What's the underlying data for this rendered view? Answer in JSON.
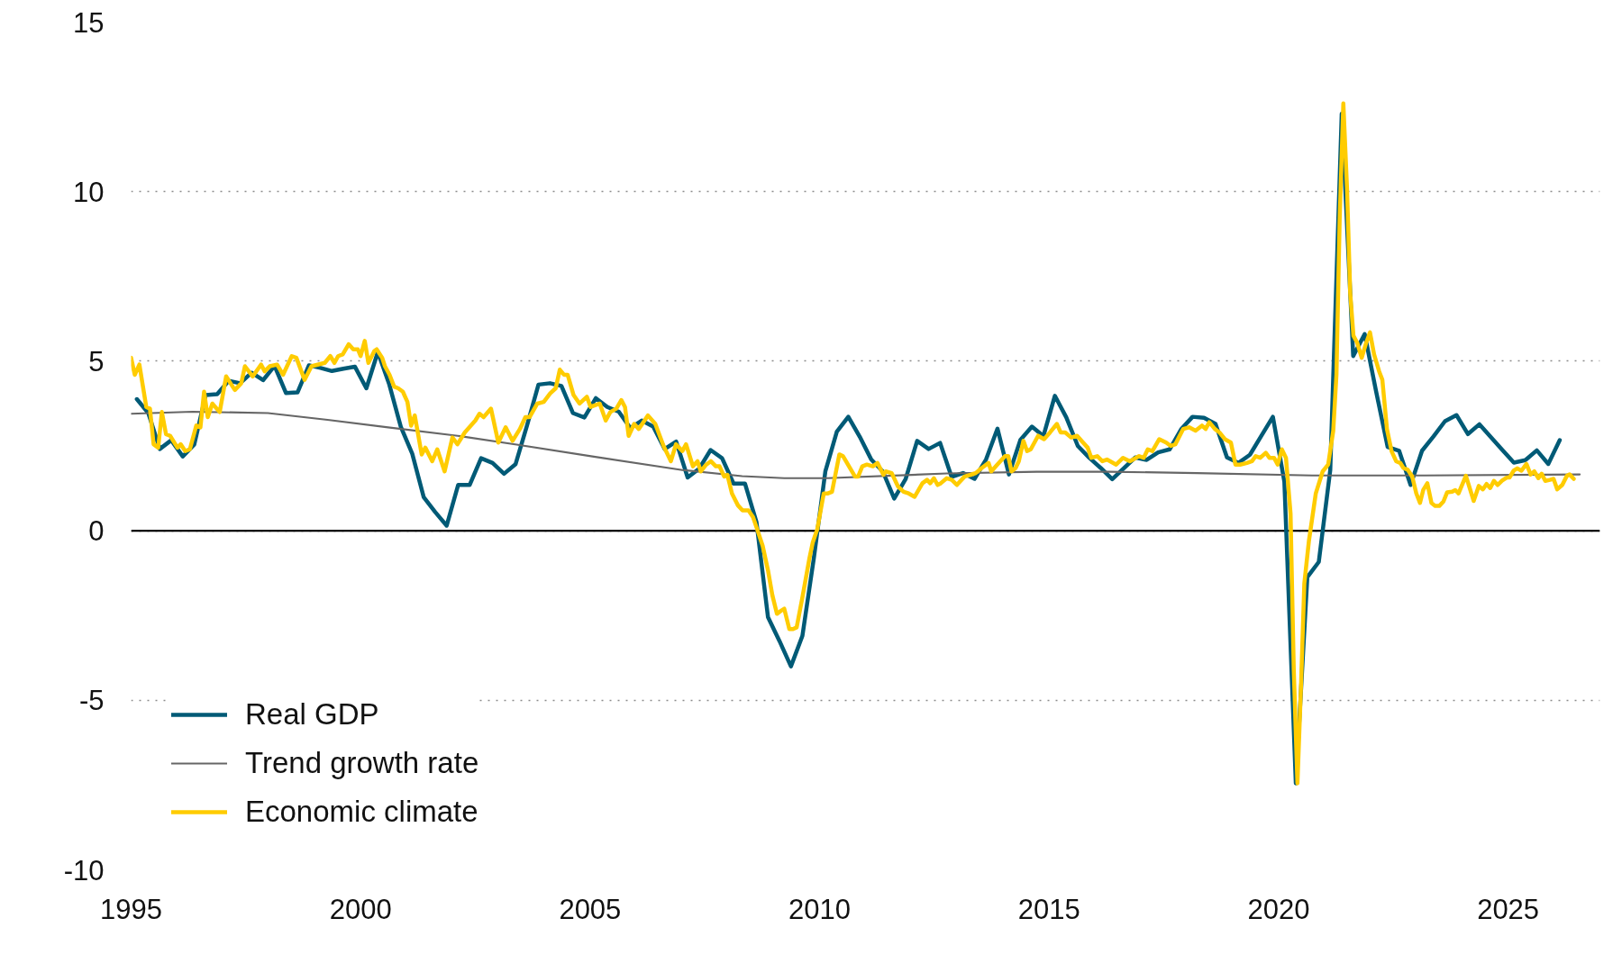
{
  "chart_data": {
    "type": "line",
    "xlim": [
      1995,
      2027
    ],
    "xticks": [
      1995,
      2000,
      2005,
      2010,
      2015,
      2020,
      2025
    ],
    "ylim": [
      -10,
      15
    ],
    "yticks": [
      -10,
      -5,
      0,
      5,
      10,
      15
    ],
    "grid": "y",
    "legend": "bottom left",
    "ref_lines": [
      {
        "axis": "y",
        "value": 0,
        "color": "#000000"
      }
    ],
    "series": [
      {
        "name": "Real GDP",
        "color": "#005a76",
        "x": [
          1995.125,
          1995.375,
          1995.625,
          1995.875,
          1996.125,
          1996.375,
          1996.625,
          1996.875,
          1997.125,
          1997.375,
          1997.625,
          1997.875,
          1998.125,
          1998.375,
          1998.625,
          1998.875,
          1999.125,
          1999.375,
          1999.625,
          1999.875,
          2000.125,
          2000.375,
          2000.625,
          2000.875,
          2001.125,
          2001.375,
          2001.625,
          2001.875,
          2002.125,
          2002.375,
          2002.625,
          2002.875,
          2003.125,
          2003.375,
          2003.625,
          2003.875,
          2004.125,
          2004.375,
          2004.625,
          2004.875,
          2005.125,
          2005.375,
          2005.625,
          2005.875,
          2006.125,
          2006.375,
          2006.625,
          2006.875,
          2007.125,
          2007.375,
          2007.625,
          2007.875,
          2008.125,
          2008.375,
          2008.625,
          2008.875,
          2009.125,
          2009.375,
          2009.625,
          2009.875,
          2010.125,
          2010.375,
          2010.625,
          2010.875,
          2011.125,
          2011.375,
          2011.625,
          2011.875,
          2012.125,
          2012.375,
          2012.625,
          2012.875,
          2013.125,
          2013.375,
          2013.625,
          2013.875,
          2014.125,
          2014.375,
          2014.625,
          2014.875,
          2015.125,
          2015.375,
          2015.625,
          2015.875,
          2016.125,
          2016.375,
          2016.625,
          2016.875,
          2017.125,
          2017.375,
          2017.625,
          2017.875,
          2018.125,
          2018.375,
          2018.625,
          2018.875,
          2019.125,
          2019.375,
          2019.625,
          2019.875,
          2020.125,
          2020.375,
          2020.625,
          2020.875,
          2021.125,
          2021.375,
          2021.625,
          2021.875,
          2022.125,
          2022.375,
          2022.625,
          2022.875,
          2023.125,
          2023.375,
          2023.625,
          2023.875,
          2024.125,
          2024.375,
          2024.625,
          2024.875,
          2025.125,
          2025.375,
          2025.625,
          2025.875,
          2026.125
        ],
        "values": [
          3.88,
          3.47,
          2.41,
          2.67,
          2.19,
          2.54,
          4.0,
          4.03,
          4.42,
          4.35,
          4.66,
          4.44,
          4.86,
          4.06,
          4.08,
          4.88,
          4.8,
          4.71,
          4.78,
          4.84,
          4.2,
          5.27,
          4.31,
          3.07,
          2.27,
          0.99,
          0.55,
          0.15,
          1.35,
          1.35,
          2.14,
          2.0,
          1.68,
          1.96,
          3.1,
          4.31,
          4.35,
          4.27,
          3.47,
          3.34,
          3.91,
          3.65,
          3.51,
          3.03,
          3.25,
          3.07,
          2.41,
          2.63,
          1.57,
          1.83,
          2.38,
          2.14,
          1.39,
          1.39,
          0.25,
          -2.55,
          -3.25,
          -4.0,
          -3.1,
          -0.8,
          1.75,
          2.92,
          3.36,
          2.77,
          2.1,
          1.75,
          0.95,
          1.53,
          2.65,
          2.41,
          2.59,
          1.59,
          1.7,
          1.53,
          2.1,
          3.01,
          1.66,
          2.68,
          3.07,
          2.79,
          3.98,
          3.34,
          2.5,
          2.15,
          1.85,
          1.52,
          1.84,
          2.16,
          2.09,
          2.31,
          2.4,
          2.99,
          3.36,
          3.33,
          3.15,
          2.16,
          2.0,
          2.24,
          2.8,
          3.36,
          1.45,
          -7.45,
          -1.37,
          -0.92,
          1.79,
          12.3,
          5.15,
          5.8,
          4.1,
          2.47,
          2.36,
          1.35,
          2.36,
          2.78,
          3.23,
          3.41,
          2.85,
          3.14,
          2.76,
          2.38,
          2.01,
          2.08,
          2.37,
          1.97,
          2.67
        ]
      },
      {
        "name": "Trend growth rate",
        "color": "#666666",
        "x": [
          1995.0,
          1996.34,
          1997.98,
          1999.28,
          2000.6,
          2002.17,
          2003.4,
          2005.05,
          2007.01,
          2008.31,
          2009.23,
          2010.16,
          2012.77,
          2014.73,
          2016.3,
          2018.22,
          2020.73,
          2023.17,
          2026.56
        ],
        "values": [
          3.45,
          3.51,
          3.47,
          3.27,
          3.05,
          2.79,
          2.54,
          2.19,
          1.79,
          1.61,
          1.55,
          1.55,
          1.69,
          1.74,
          1.74,
          1.7,
          1.63,
          1.63,
          1.66
        ]
      },
      {
        "name": "Economic climate",
        "color": "#ffcc00",
        "x": [
          1995.0,
          1995.08,
          1995.18,
          1995.33,
          1995.41,
          1995.49,
          1995.59,
          1995.67,
          1995.76,
          1995.85,
          1996.01,
          1996.08,
          1996.18,
          1996.28,
          1996.42,
          1996.51,
          1996.59,
          1996.67,
          1996.77,
          1996.93,
          1997.07,
          1997.26,
          1997.4,
          1997.48,
          1997.65,
          1997.83,
          1997.91,
          1998.02,
          1998.18,
          1998.31,
          1998.5,
          1998.6,
          1998.78,
          1998.93,
          1999.22,
          1999.34,
          1999.43,
          1999.51,
          1999.61,
          1999.74,
          1999.84,
          1999.94,
          2000.0,
          2000.09,
          2000.17,
          2000.3,
          2000.35,
          2000.47,
          2000.53,
          2000.63,
          2000.73,
          2000.82,
          2000.92,
          2001.02,
          2001.1,
          2001.18,
          2001.33,
          2001.41,
          2001.56,
          2001.67,
          2001.83,
          2002.0,
          2002.11,
          2002.27,
          2002.5,
          2002.59,
          2002.68,
          2002.84,
          2003.0,
          2003.16,
          2003.31,
          2003.47,
          2003.59,
          2003.68,
          2003.85,
          2003.99,
          2004.13,
          2004.25,
          2004.34,
          2004.43,
          2004.51,
          2004.64,
          2004.77,
          2004.93,
          2005.01,
          2005.21,
          2005.34,
          2005.44,
          2005.57,
          2005.68,
          2005.76,
          2005.84,
          2005.96,
          2006.06,
          2006.26,
          2006.42,
          2006.6,
          2006.76,
          2006.87,
          2007.01,
          2007.09,
          2007.24,
          2007.34,
          2007.41,
          2007.53,
          2007.63,
          2007.74,
          2007.82,
          2007.92,
          2007.99,
          2008.09,
          2008.22,
          2008.32,
          2008.45,
          2008.55,
          2008.65,
          2008.76,
          2008.88,
          2008.97,
          2009.07,
          2009.17,
          2009.23,
          2009.34,
          2009.42,
          2009.5,
          2009.62,
          2009.78,
          2009.85,
          2009.95,
          2010.09,
          2010.18,
          2010.27,
          2010.43,
          2010.51,
          2010.64,
          2010.77,
          2010.84,
          2010.93,
          2011.03,
          2011.16,
          2011.26,
          2011.39,
          2011.44,
          2011.57,
          2011.71,
          2011.83,
          2011.94,
          2012.07,
          2012.24,
          2012.34,
          2012.41,
          2012.49,
          2012.57,
          2012.64,
          2012.77,
          2012.88,
          2012.99,
          2013.16,
          2013.29,
          2013.4,
          2013.53,
          2013.68,
          2013.74,
          2013.87,
          2014.04,
          2014.11,
          2014.18,
          2014.27,
          2014.34,
          2014.44,
          2014.52,
          2014.6,
          2014.76,
          2014.89,
          2015.02,
          2015.17,
          2015.25,
          2015.35,
          2015.48,
          2015.61,
          2015.74,
          2015.84,
          2015.92,
          2016.05,
          2016.16,
          2016.26,
          2016.46,
          2016.61,
          2016.76,
          2016.96,
          2017.06,
          2017.15,
          2017.25,
          2017.4,
          2017.55,
          2017.65,
          2017.75,
          2017.92,
          2018.05,
          2018.19,
          2018.33,
          2018.41,
          2018.49,
          2018.61,
          2018.71,
          2018.83,
          2018.96,
          2019.06,
          2019.16,
          2019.31,
          2019.42,
          2019.5,
          2019.6,
          2019.72,
          2019.8,
          2019.9,
          2019.98,
          2020.07,
          2020.16,
          2020.26,
          2020.33,
          2020.41,
          2020.49,
          2020.56,
          2020.66,
          2020.81,
          2020.96,
          2021.08,
          2021.19,
          2021.26,
          2021.33,
          2021.41,
          2021.49,
          2021.56,
          2021.63,
          2021.71,
          2021.81,
          2021.91,
          2021.99,
          2022.08,
          2022.19,
          2022.26,
          2022.36,
          2022.46,
          2022.56,
          2022.65,
          2022.72,
          2022.81,
          2022.91,
          2023.0,
          2023.08,
          2023.15,
          2023.24,
          2023.33,
          2023.41,
          2023.5,
          2023.59,
          2023.67,
          2023.78,
          2023.85,
          2023.92,
          2024.08,
          2024.25,
          2024.36,
          2024.45,
          2024.53,
          2024.61,
          2024.69,
          2024.77,
          2024.87,
          2024.97,
          2025.03,
          2025.12,
          2025.2,
          2025.29,
          2025.4,
          2025.49,
          2025.57,
          2025.66,
          2025.73,
          2025.81,
          2025.91,
          2025.99,
          2026.07,
          2026.18,
          2026.28,
          2026.34,
          2026.43
        ],
        "values": [
          5.1,
          4.6,
          4.9,
          3.65,
          3.6,
          2.55,
          2.45,
          3.5,
          2.85,
          2.8,
          2.45,
          2.55,
          2.35,
          2.4,
          3.1,
          3.05,
          4.1,
          3.35,
          3.75,
          3.5,
          4.55,
          4.15,
          4.35,
          4.85,
          4.55,
          4.9,
          4.7,
          4.85,
          4.9,
          4.6,
          5.15,
          5.1,
          4.45,
          4.85,
          4.95,
          5.15,
          4.95,
          5.15,
          5.2,
          5.5,
          5.35,
          5.35,
          5.15,
          5.6,
          4.95,
          5.3,
          5.35,
          5.1,
          4.85,
          4.6,
          4.25,
          4.2,
          4.1,
          3.8,
          3.1,
          3.4,
          2.25,
          2.45,
          2.05,
          2.4,
          1.75,
          2.75,
          2.55,
          2.9,
          3.25,
          3.45,
          3.35,
          3.6,
          2.6,
          3.05,
          2.65,
          3.0,
          3.35,
          3.35,
          3.75,
          3.8,
          4.05,
          4.2,
          4.75,
          4.6,
          4.6,
          4.0,
          3.75,
          3.95,
          3.65,
          3.75,
          3.25,
          3.5,
          3.6,
          3.85,
          3.65,
          2.8,
          3.15,
          3.0,
          3.4,
          3.15,
          2.5,
          2.05,
          2.55,
          2.35,
          2.55,
          1.9,
          2.05,
          1.75,
          1.95,
          2.05,
          1.9,
          1.9,
          1.6,
          1.65,
          1.1,
          0.75,
          0.6,
          0.6,
          0.4,
          0.0,
          -0.45,
          -1.2,
          -1.9,
          -2.45,
          -2.35,
          -2.3,
          -2.9,
          -2.9,
          -2.85,
          -2.0,
          -0.8,
          -0.35,
          0.05,
          1.1,
          1.1,
          1.15,
          2.25,
          2.2,
          1.9,
          1.6,
          1.6,
          1.9,
          1.95,
          1.9,
          2.0,
          1.65,
          1.75,
          1.7,
          1.3,
          1.15,
          1.1,
          1.0,
          1.4,
          1.5,
          1.4,
          1.55,
          1.35,
          1.4,
          1.55,
          1.5,
          1.35,
          1.6,
          1.65,
          1.7,
          1.85,
          2.0,
          1.75,
          1.95,
          2.2,
          2.2,
          1.75,
          1.85,
          2.05,
          2.65,
          2.35,
          2.4,
          2.8,
          2.7,
          2.9,
          3.15,
          2.9,
          2.9,
          2.75,
          2.8,
          2.6,
          2.45,
          2.15,
          2.2,
          2.05,
          2.1,
          1.95,
          2.15,
          2.05,
          2.2,
          2.15,
          2.4,
          2.35,
          2.7,
          2.6,
          2.5,
          2.55,
          3.0,
          3.05,
          2.95,
          3.1,
          3.0,
          3.2,
          3.0,
          2.9,
          2.7,
          2.6,
          1.95,
          1.95,
          2.0,
          2.05,
          2.2,
          2.15,
          2.3,
          2.15,
          2.15,
          1.95,
          2.4,
          2.15,
          0.5,
          -4.1,
          -7.45,
          -4.5,
          -1.55,
          -0.3,
          1.1,
          1.75,
          1.95,
          2.95,
          4.6,
          9.2,
          12.6,
          10.1,
          7.0,
          5.75,
          5.55,
          5.1,
          5.55,
          5.85,
          5.2,
          4.7,
          4.45,
          3.0,
          2.35,
          2.05,
          2.0,
          1.85,
          1.8,
          1.6,
          1.1,
          0.82,
          1.2,
          1.4,
          0.82,
          0.73,
          0.73,
          0.86,
          1.13,
          1.15,
          1.2,
          1.1,
          1.62,
          0.88,
          1.32,
          1.22,
          1.38,
          1.26,
          1.47,
          1.35,
          1.48,
          1.57,
          1.57,
          1.77,
          1.84,
          1.77,
          1.97,
          1.66,
          1.75,
          1.55,
          1.68,
          1.47,
          1.5,
          1.53,
          1.22,
          1.35,
          1.62,
          1.66,
          1.53
        ]
      }
    ]
  }
}
